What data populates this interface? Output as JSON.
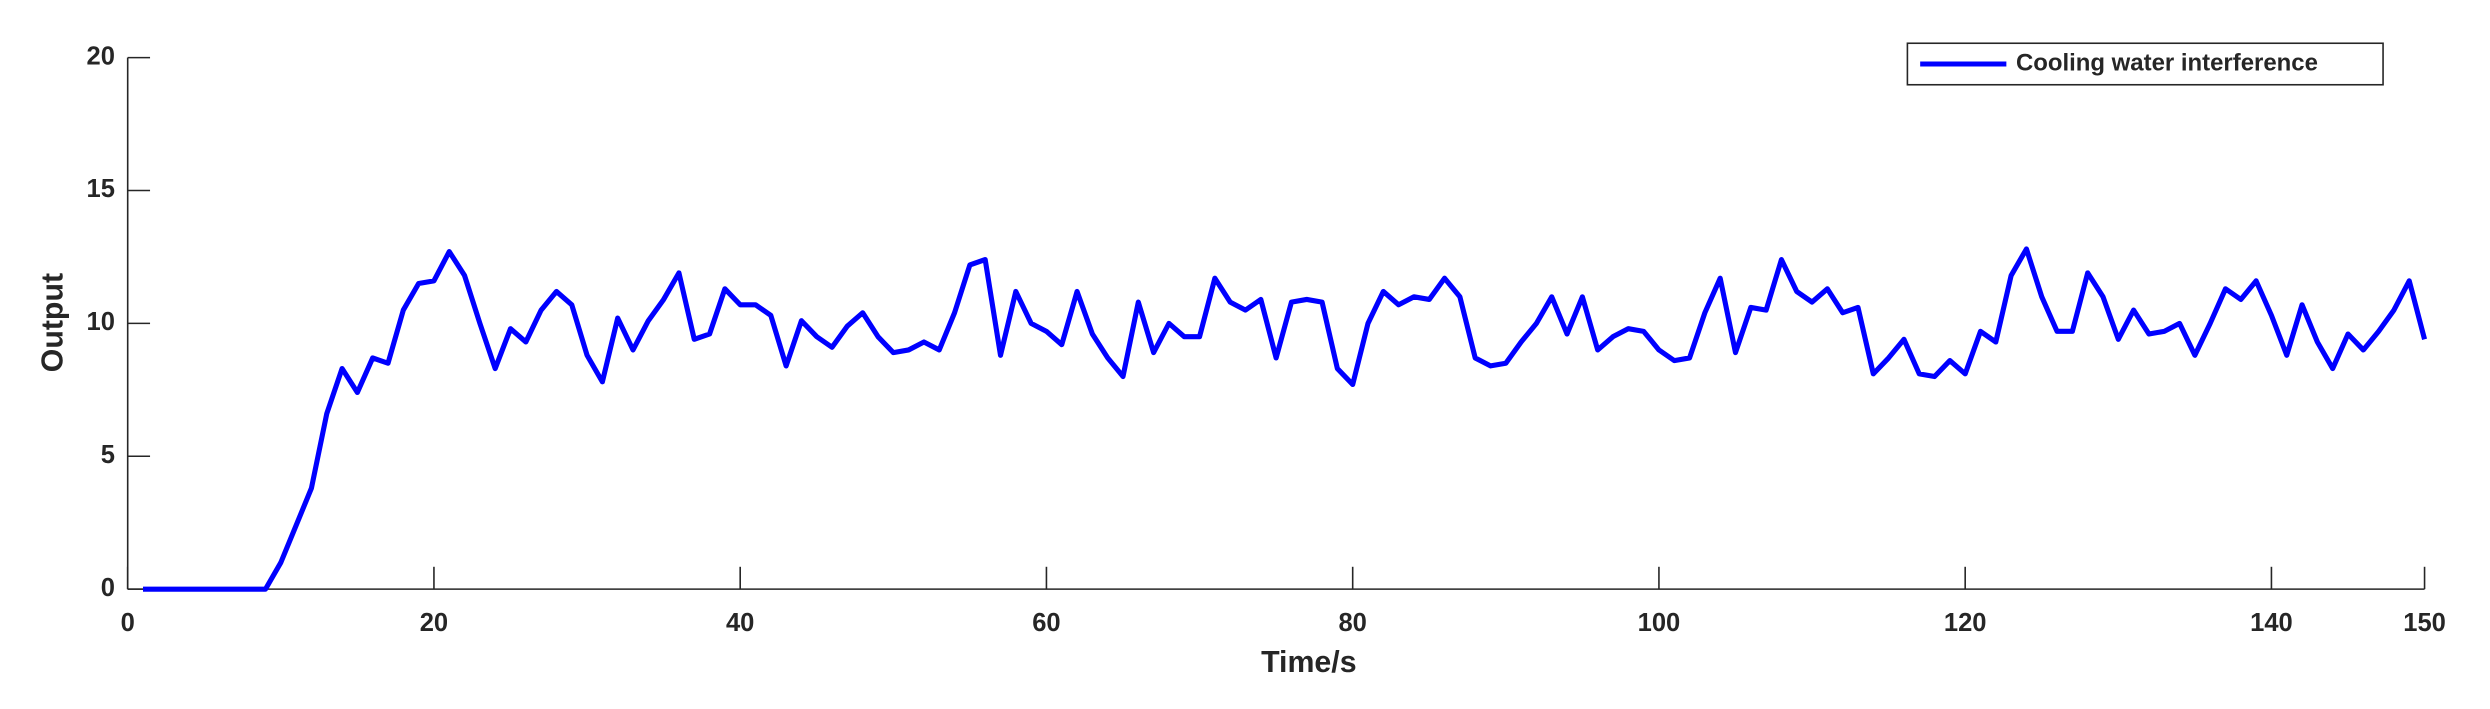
{
  "chart_data": {
    "type": "line",
    "xlabel": "Time/s",
    "ylabel": "Output",
    "x": [
      1,
      2,
      3,
      4,
      5,
      6,
      7,
      8,
      9,
      10,
      11,
      12,
      13,
      14,
      15,
      16,
      17,
      18,
      19,
      20,
      21,
      22,
      23,
      24,
      25,
      26,
      27,
      28,
      29,
      30,
      31,
      32,
      33,
      34,
      35,
      36,
      37,
      38,
      39,
      40,
      41,
      42,
      43,
      44,
      45,
      46,
      47,
      48,
      49,
      50,
      51,
      52,
      53,
      54,
      55,
      56,
      57,
      58,
      59,
      60,
      61,
      62,
      63,
      64,
      65,
      66,
      67,
      68,
      69,
      70,
      71,
      72,
      73,
      74,
      75,
      76,
      77,
      78,
      79,
      80,
      81,
      82,
      83,
      84,
      85,
      86,
      87,
      88,
      89,
      90,
      91,
      92,
      93,
      94,
      95,
      96,
      97,
      98,
      99,
      100,
      101,
      102,
      103,
      104,
      105,
      106,
      107,
      108,
      109,
      110,
      111,
      112,
      113,
      114,
      115,
      116,
      117,
      118,
      119,
      120,
      121,
      122,
      123,
      124,
      125,
      126,
      127,
      128,
      129,
      130,
      131,
      132,
      133,
      134,
      135,
      136,
      137,
      138,
      139,
      140,
      141,
      142,
      143,
      144,
      145,
      146,
      147,
      148,
      149,
      150
    ],
    "series": [
      {
        "name": "Cooling water interference",
        "color": "#0000ff",
        "values": [
          0,
          0,
          0,
          0,
          0,
          0,
          0,
          0,
          0,
          1.0,
          2.4,
          3.8,
          6.6,
          8.3,
          7.4,
          8.7,
          8.5,
          10.5,
          11.5,
          11.6,
          12.7,
          11.8,
          10.0,
          8.3,
          9.8,
          9.3,
          10.5,
          11.2,
          10.7,
          8.8,
          7.8,
          10.2,
          9.0,
          10.1,
          10.9,
          11.9,
          9.4,
          9.6,
          11.3,
          10.7,
          10.7,
          10.3,
          8.4,
          10.1,
          9.5,
          9.1,
          9.9,
          10.4,
          9.5,
          8.9,
          9.0,
          9.3,
          9.0,
          10.4,
          12.2,
          12.4,
          8.8,
          11.2,
          10.0,
          9.7,
          9.2,
          11.2,
          9.6,
          8.7,
          8.0,
          10.8,
          8.9,
          10.0,
          9.5,
          9.5,
          11.7,
          10.8,
          10.5,
          10.9,
          8.7,
          10.8,
          10.9,
          10.8,
          8.3,
          7.7,
          10.0,
          11.2,
          10.7,
          11.0,
          10.9,
          11.7,
          11.0,
          8.7,
          8.4,
          8.5,
          9.3,
          10.0,
          11.0,
          9.6,
          11.0,
          9.0,
          9.5,
          9.8,
          9.7,
          9.0,
          8.6,
          8.7,
          10.4,
          11.7,
          8.9,
          10.6,
          10.5,
          12.4,
          11.2,
          10.8,
          11.3,
          10.4,
          10.6,
          8.1,
          8.7,
          9.4,
          8.1,
          8.0,
          8.6,
          8.1,
          9.7,
          9.3,
          11.8,
          12.8,
          11.0,
          9.7,
          9.7,
          11.9,
          11.0,
          9.4,
          10.5,
          9.6,
          9.7,
          10.0,
          8.8,
          10.0,
          11.3,
          10.9,
          11.6,
          10.3,
          8.8,
          10.7,
          9.3,
          8.3,
          9.6,
          9.0,
          9.7,
          10.5,
          11.6,
          9.4
        ]
      }
    ],
    "xlim": [
      0,
      150
    ],
    "xticks": [
      0,
      20,
      40,
      60,
      80,
      100,
      120,
      140,
      150
    ],
    "ylim": [
      0,
      20
    ],
    "yticks": [
      0,
      5,
      10,
      15,
      20
    ],
    "legend": "upper right"
  }
}
